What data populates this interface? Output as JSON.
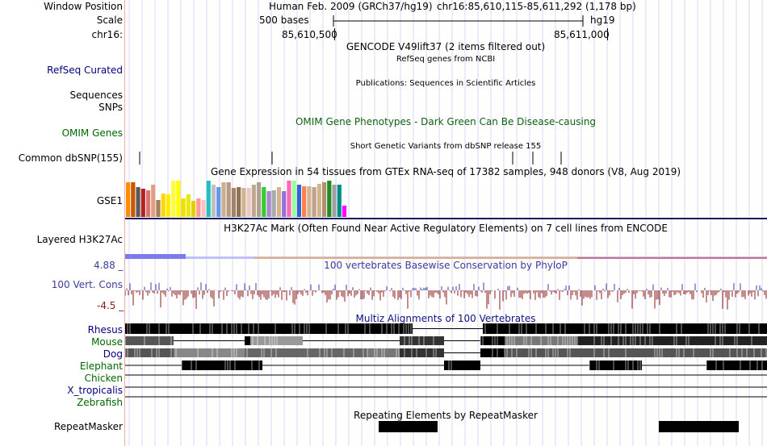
{
  "header": {
    "window_position_label": "Window Position",
    "scale_label": "Scale",
    "chrom_label": "chr16:",
    "assembly": "Human Feb. 2009 (GRCh37/hg19)",
    "position": "chr16:85,610,115-85,611,292 (1,178 bp)",
    "scale_text": "500 bases",
    "scale_db": "hg19",
    "tick_left": "85,610,500",
    "tick_right": "85,611,000"
  },
  "tracks": {
    "gencode_title": "GENCODE V49lift37 (2 items filtered out)",
    "refseq_label": "RefSeq Curated",
    "refseq_title": "RefSeq genes from NCBI",
    "publications_title": "Publications: Sequences in Scientific Articles",
    "sequences_label": "Sequences",
    "snps_label": "SNPs",
    "omim_label": "OMIM Genes",
    "omim_title": "OMIM Gene Phenotypes - Dark Green Can Be Disease-causing",
    "dbsnp_title": "Short Genetic Variants from dbSNP release 155",
    "dbsnp_label": "Common dbSNP(155)",
    "gtex_title": "Gene Expression in 54 tissues from GTEx RNA-seq of 17382 samples, 948 donors (V8, Aug 2019)",
    "gtex_label": "GSE1",
    "h3k27ac_label": "Layered H3K27Ac",
    "h3k27ac_title": "H3K27Ac Mark (Often Found Near Active Regulatory Elements) on 7 cell lines from ENCODE",
    "phylop_max": "4.88 _",
    "phylop_label": "100 Vert. Cons",
    "phylop_min": "-4.5 _",
    "phylop_title": "100 vertebrates Basewise Conservation by PhyloP",
    "multiz_title": "Multiz Alignments of 100 Vertebrates",
    "species": [
      "Rhesus",
      "Mouse",
      "Dog",
      "Elephant",
      "Chicken",
      "X_tropicalis",
      "Zebrafish"
    ],
    "repeat_title": "Repeating Elements by RepeatMasker",
    "repeat_label": "RepeatMasker"
  },
  "colors": {
    "label_navy": "#000080",
    "label_green": "#006600",
    "omim_green": "#106010",
    "phylop_blue": "#3b3ba0",
    "phylop_neg": "#8b1a1a",
    "multiz_blue": "#101080",
    "grid": "#d9d9f2",
    "separator": "#f0a8a8"
  },
  "gtex_bar_colors": [
    "#ff8c00",
    "#cc5500",
    "#5a5a5a",
    "#b22222",
    "#e07070",
    "#e0a080",
    "#a08060",
    "#ffd700",
    "#ffea00",
    "#ffff33",
    "#ffff00",
    "#f0e000",
    "#e8e800",
    "#e0d000",
    "#ff9999",
    "#ffc0c0",
    "#20c0c0",
    "#c0c0c0",
    "#6495ed",
    "#c8b090",
    "#b89a80",
    "#a0826d",
    "#8b7355",
    "#d2b48c",
    "#e8c8c8",
    "#c0a890",
    "#b0a090",
    "#33cc33",
    "#aa88cc",
    "#aaaaaa",
    "#d2b48c",
    "#9370db",
    "#ff69b4",
    "#99ff99",
    "#3366cc",
    "#ff7f50",
    "#d2b48c",
    "#c0a090",
    "#d2b48c",
    "#b09070",
    "#228b22",
    "#a0a0a0",
    "#008b8b",
    "#ff00ff"
  ],
  "gtex_bar_heights": [
    0.93,
    0.93,
    0.8,
    0.77,
    0.72,
    0.87,
    0.46,
    0.62,
    0.6,
    0.98,
    0.98,
    0.5,
    0.6,
    0.44,
    0.5,
    0.46,
    0.98,
    0.88,
    0.8,
    0.93,
    0.93,
    0.78,
    0.8,
    0.78,
    0.78,
    0.87,
    0.94,
    0.8,
    0.7,
    0.72,
    0.8,
    0.7,
    0.98,
    0.98,
    0.87,
    0.82,
    0.82,
    0.8,
    0.9,
    0.93,
    0.98,
    0.87,
    0.87,
    0.3
  ]
}
